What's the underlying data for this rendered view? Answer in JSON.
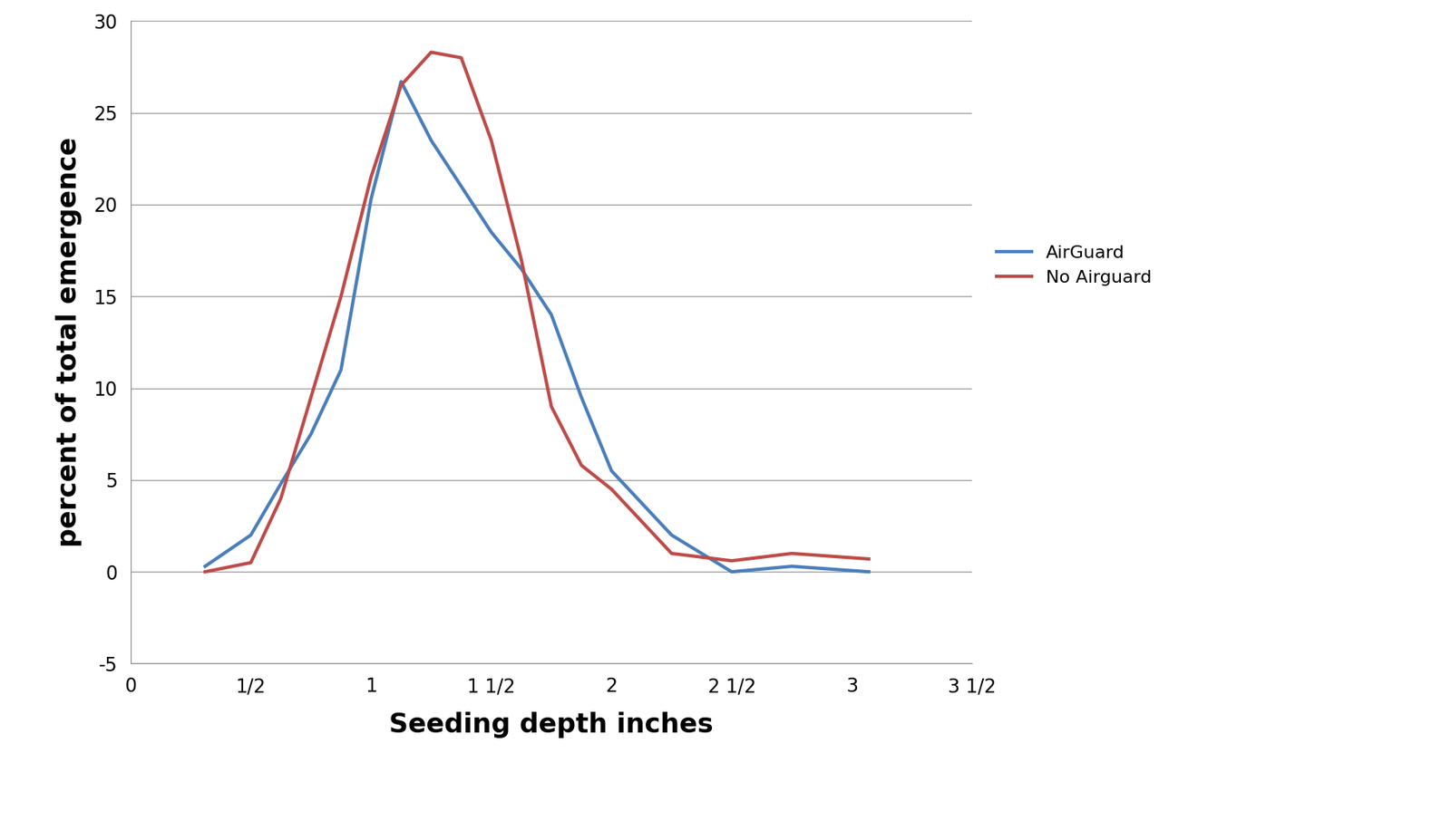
{
  "chart_data": {
    "type": "line",
    "x_label": "Seeding depth inches",
    "y_label": "percent of total emergence",
    "x": [
      0.31,
      0.5,
      0.625,
      0.75,
      0.875,
      1.0,
      1.125,
      1.25,
      1.375,
      1.5,
      1.625,
      1.75,
      1.875,
      2.0,
      2.25,
      2.5,
      2.75,
      3.07
    ],
    "series": [
      {
        "name": "AirGuard",
        "color": "#4a7ebb",
        "line_style": "solid",
        "values": [
          0.3,
          2.0,
          4.8,
          7.5,
          11.0,
          20.3,
          26.7,
          23.5,
          21.0,
          18.5,
          16.5,
          14.0,
          9.5,
          5.5,
          2.0,
          0.0,
          0.3,
          0.0
        ]
      },
      {
        "name": "No Airguard",
        "color": "#be4b48",
        "line_style": "solid",
        "values": [
          0.0,
          0.5,
          4.0,
          9.5,
          15.0,
          21.5,
          26.5,
          28.3,
          28.0,
          23.5,
          17.0,
          9.0,
          5.8,
          4.5,
          1.0,
          0.6,
          1.0,
          0.7
        ]
      }
    ],
    "xlim": [
      0,
      3.5
    ],
    "xticks": [
      0,
      {
        "value": 0.5,
        "label": "1/2"
      },
      1,
      {
        "value": 1.5,
        "label": "1 1/2"
      },
      2,
      {
        "value": 2.5,
        "label": "2 1/2"
      },
      3,
      {
        "value": 3.5,
        "label": "3 1/2"
      }
    ],
    "ylim": [
      -5,
      30
    ],
    "yticks": [
      -5,
      0,
      5,
      10,
      15,
      20,
      25,
      30
    ],
    "grid": true,
    "legend": "right"
  }
}
